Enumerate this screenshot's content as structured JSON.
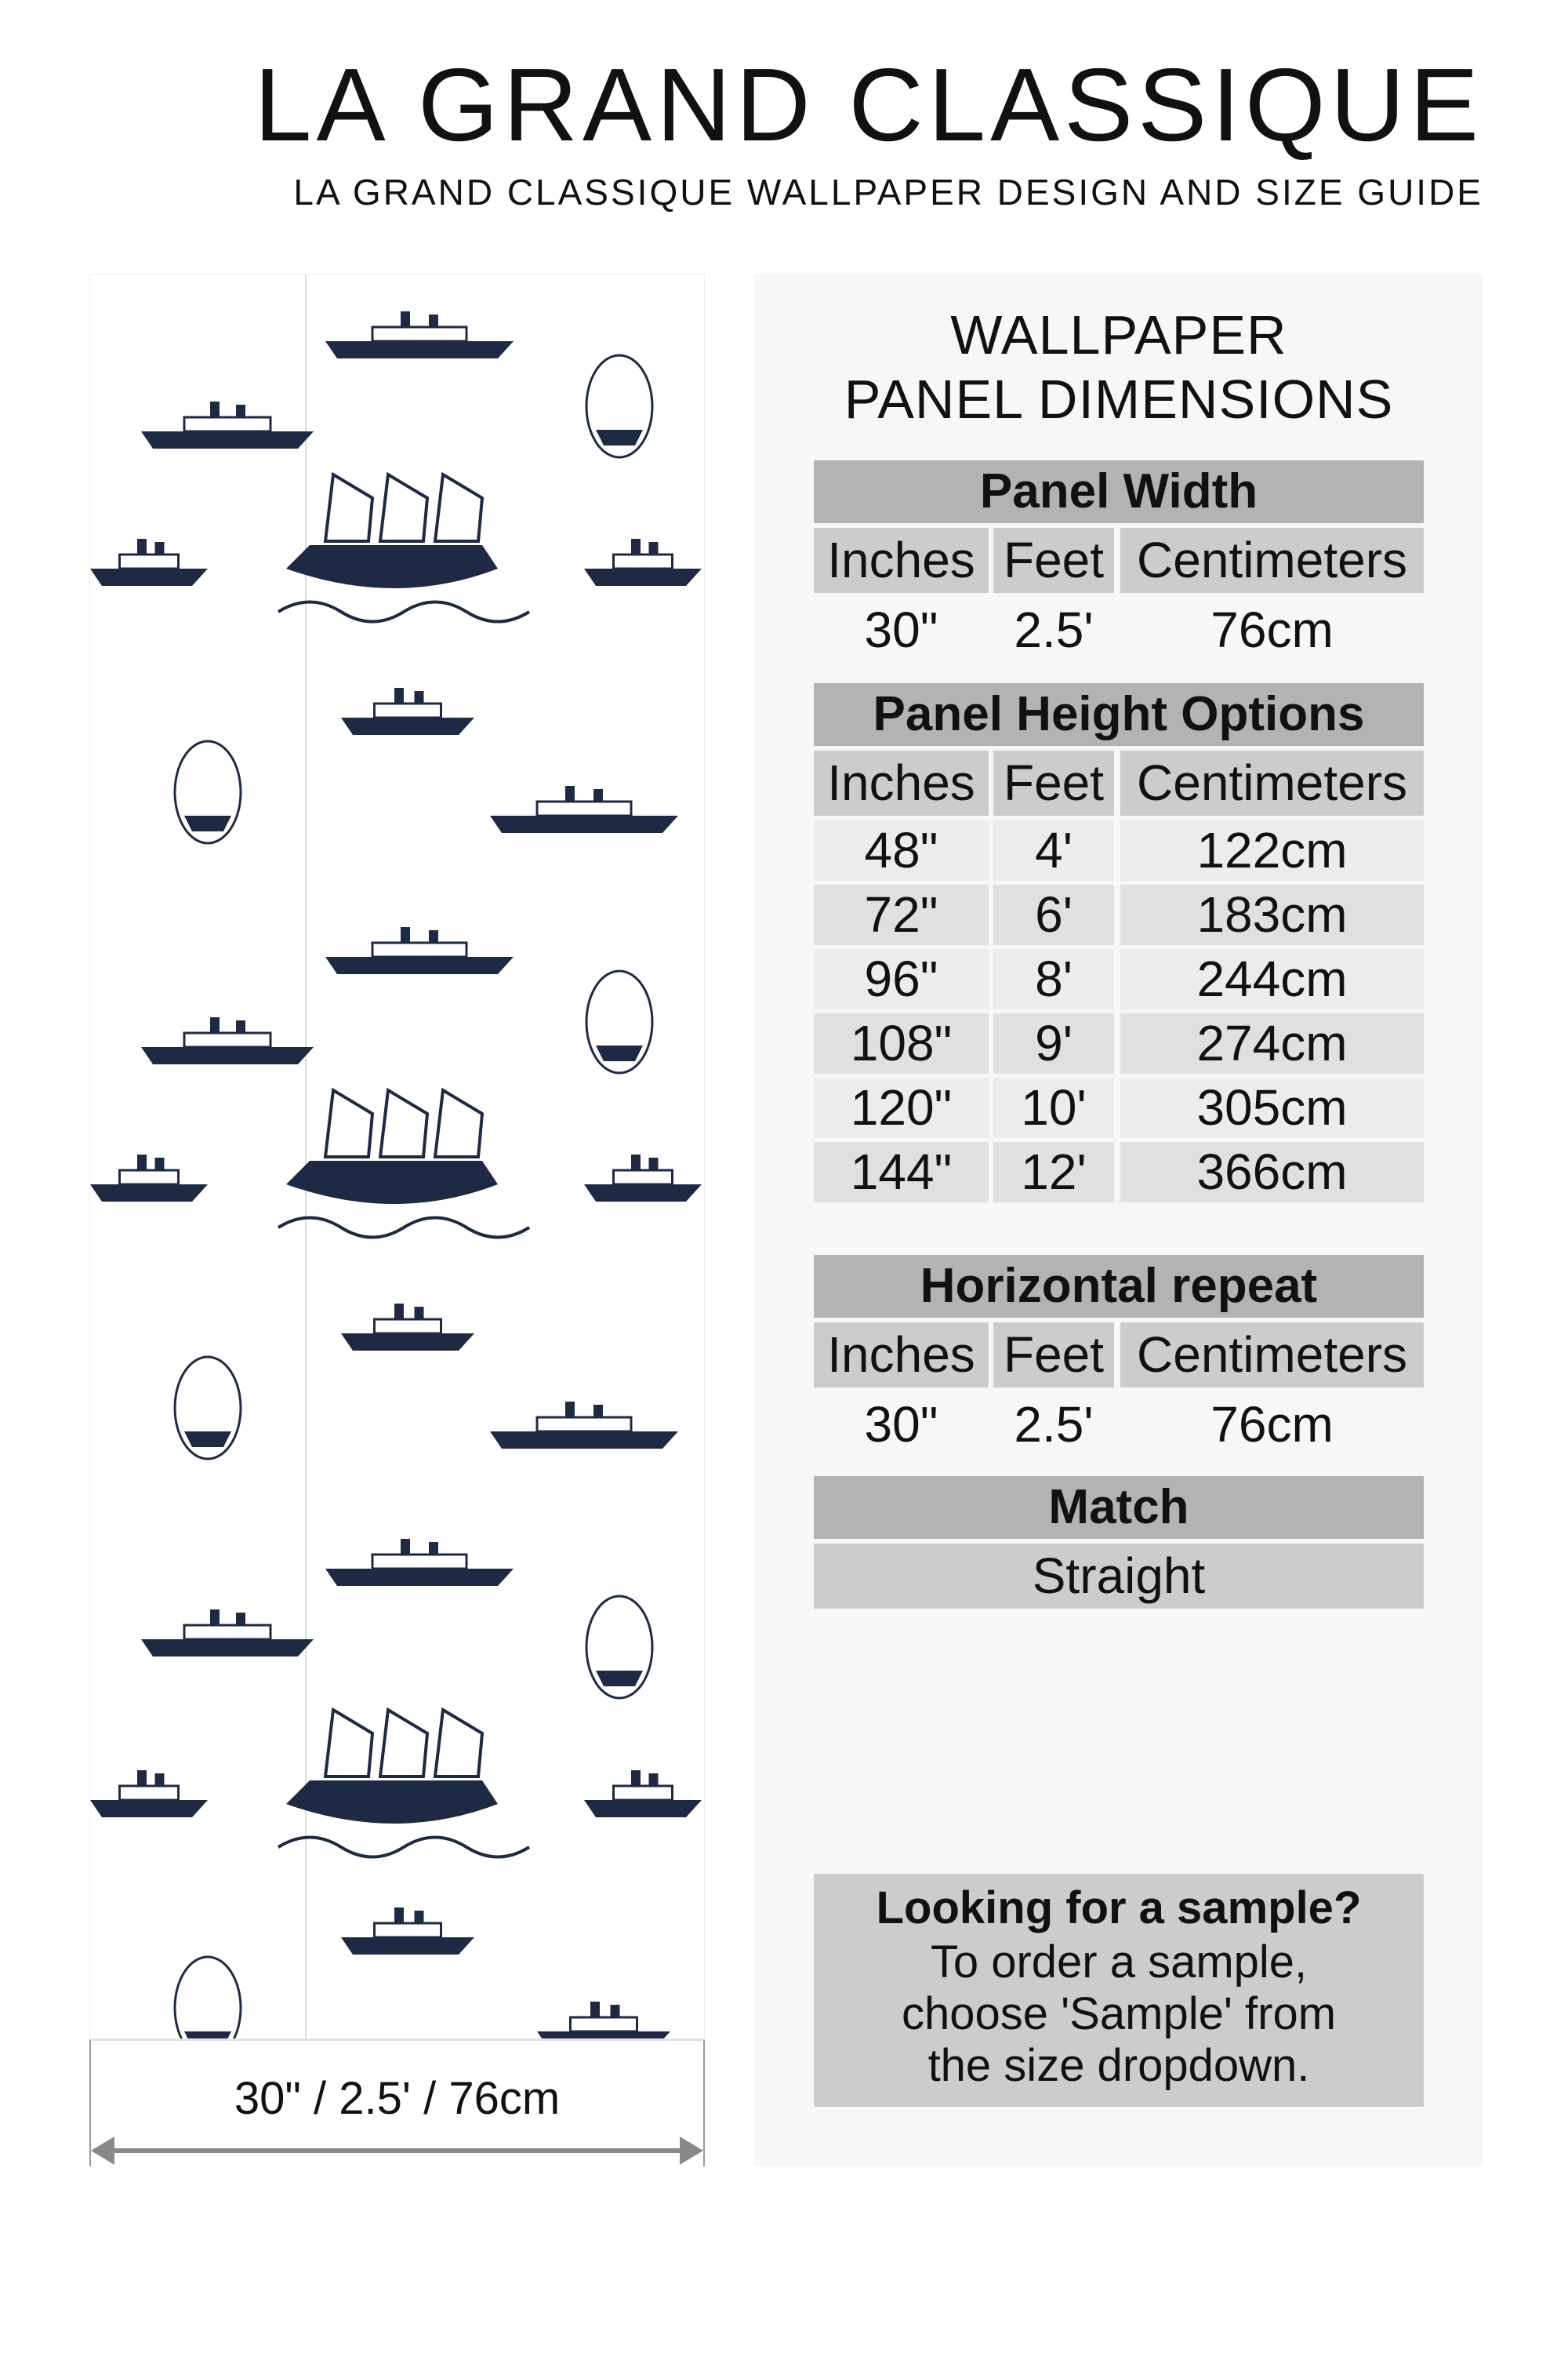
{
  "header": {
    "title": "LA GRAND CLASSIQUE",
    "subtitle": "LA GRAND CLASSIQUE WALLPAPER DESIGN AND SIZE GUIDE"
  },
  "preview": {
    "dimension_label": "30\" / 2.5' / 76cm",
    "pattern_color": "#1e2a44"
  },
  "info": {
    "title_line1": "WALLPAPER",
    "title_line2": "PANEL DIMENSIONS",
    "columns": [
      "Inches",
      "Feet",
      "Centimeters"
    ],
    "panel_width": {
      "heading": "Panel Width",
      "values": [
        "30\"",
        "2.5'",
        "76cm"
      ]
    },
    "panel_height": {
      "heading": "Panel Height Options",
      "rows": [
        [
          "48\"",
          "4'",
          "122cm"
        ],
        [
          "72\"",
          "6'",
          "183cm"
        ],
        [
          "96\"",
          "8'",
          "244cm"
        ],
        [
          "108\"",
          "9'",
          "274cm"
        ],
        [
          "120\"",
          "10'",
          "305cm"
        ],
        [
          "144\"",
          "12'",
          "366cm"
        ]
      ]
    },
    "horizontal_repeat": {
      "heading": "Horizontal repeat",
      "values": [
        "30\"",
        "2.5'",
        "76cm"
      ]
    },
    "match": {
      "heading": "Match",
      "value": "Straight"
    },
    "sample": {
      "heading": "Looking for a sample?",
      "line1": "To order a sample,",
      "line2": "choose 'Sample' from",
      "line3": "the size dropdown."
    }
  }
}
